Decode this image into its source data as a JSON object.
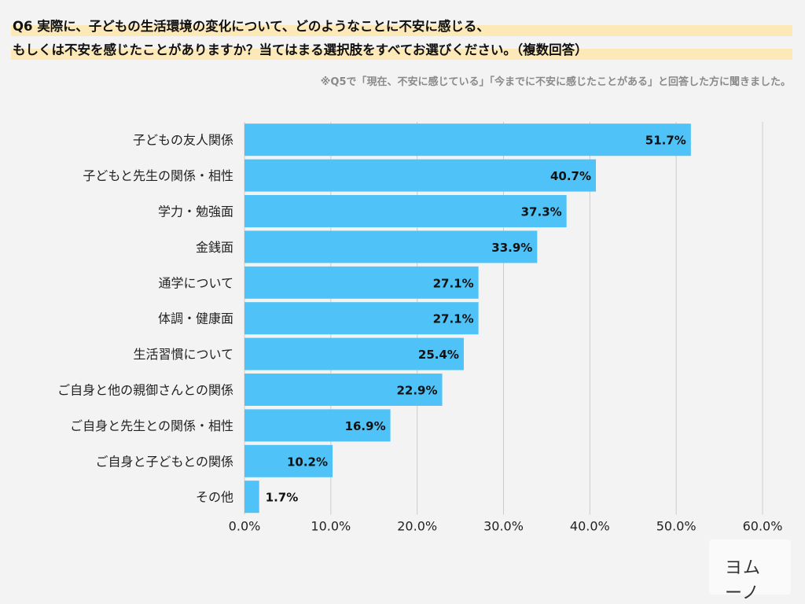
{
  "header": {
    "title_line1": "Q6 実際に、子どもの生活環境の変化について、どのようなことに不安に感じる、",
    "title_line2": "もしくは不安を感じたことがありますか？当てはまる選択肢をすべてお選びください。（複数回答）",
    "note": "※Q5で「現在、不安に感じている」「今までに不安に感じたことがある」と回答した方に聞きました。"
  },
  "logo": {
    "text": "ヨムーノ"
  },
  "colors": {
    "bar": "#4fc3f7",
    "grid": "#cccccc",
    "highlight": "#fde9b8"
  },
  "chart_data": {
    "type": "bar",
    "orientation": "horizontal",
    "categories": [
      "子どもの友人関係",
      "子どもと先生の関係・相性",
      "学力・勉強面",
      "金銭面",
      "通学について",
      "体調・健康面",
      "生活習慣について",
      "ご自身と他の親御さんとの関係",
      "ご自身と先生との関係・相性",
      "ご自身と子どもとの関係",
      "その他"
    ],
    "values": [
      51.7,
      40.7,
      37.3,
      33.9,
      27.1,
      27.1,
      25.4,
      22.9,
      16.9,
      10.2,
      1.7
    ],
    "value_labels": [
      "51.7%",
      "40.7%",
      "37.3%",
      "33.9%",
      "27.1%",
      "27.1%",
      "25.4%",
      "22.9%",
      "16.9%",
      "10.2%",
      "1.7%"
    ],
    "xlim": [
      0,
      60
    ],
    "xticks": [
      "0.0%",
      "10.0%",
      "20.0%",
      "30.0%",
      "40.0%",
      "50.0%",
      "60.0%"
    ],
    "grid": true
  }
}
